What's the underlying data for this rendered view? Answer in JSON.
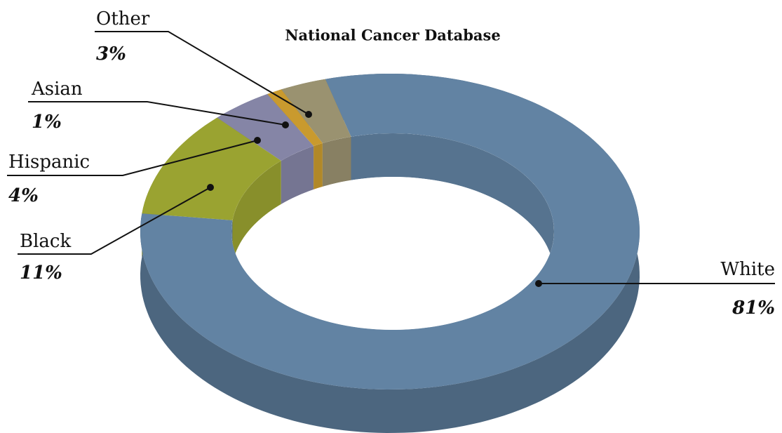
{
  "chart_data": {
    "type": "donut3d",
    "title": "National Cancer Database",
    "categories": [
      "White",
      "Black",
      "Hispanic",
      "Asian",
      "Other"
    ],
    "values": [
      81,
      11,
      4,
      1,
      3
    ],
    "value_labels": [
      "81%",
      "11%",
      "4%",
      "1%",
      "3%"
    ],
    "colors": [
      "#6283a3",
      "#9aa331",
      "#8585a6",
      "#c99a2e",
      "#9a9270"
    ]
  }
}
